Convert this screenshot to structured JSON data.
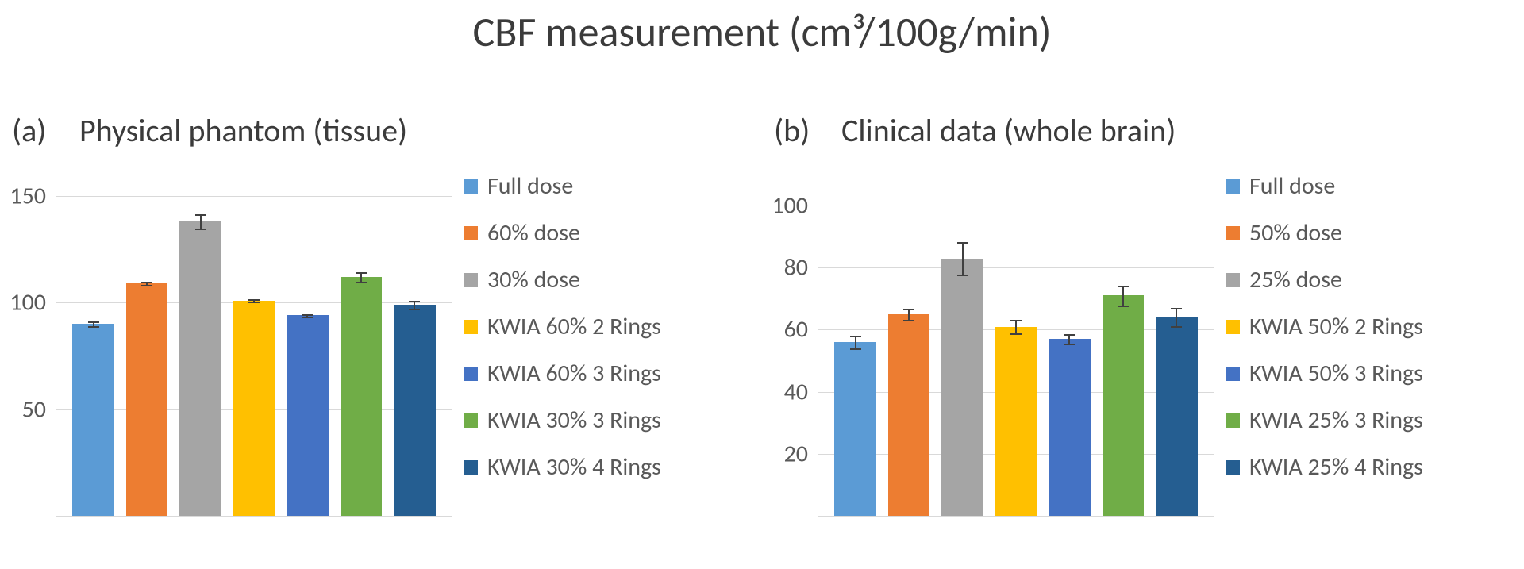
{
  "title": "CBF measurement (cm³/100g/min)",
  "panels": [
    {
      "tag": "(a)",
      "title": "Physical phantom (tissue)",
      "chart": {
        "type": "bar",
        "ylim": [
          0,
          160
        ],
        "yticks": [
          50,
          100,
          150
        ],
        "grid_color": "#d9d9d9",
        "tick_fontsize": 30,
        "tick_color": "#595959",
        "background_color": "#ffffff",
        "bar_width": 0.78,
        "error_color": "#404040",
        "series": [
          {
            "label": "Full dose",
            "value": 90,
            "error": 2,
            "color": "#5b9bd5"
          },
          {
            "label": "60% dose",
            "value": 109,
            "error": 1,
            "color": "#ed7d31"
          },
          {
            "label": "30% dose",
            "value": 138,
            "error": 4,
            "color": "#a5a5a5"
          },
          {
            "label": "KWIA 60% 2 Rings",
            "value": 101,
            "error": 1,
            "color": "#ffc000"
          },
          {
            "label": "KWIA 60% 3 Rings",
            "value": 94,
            "error": 1,
            "color": "#4472c4"
          },
          {
            "label": "KWIA 30% 3 Rings",
            "value": 112,
            "error": 3,
            "color": "#70ad47"
          },
          {
            "label": "KWIA 30% 4 Rings",
            "value": 99,
            "error": 3,
            "color": "#255e91"
          }
        ]
      }
    },
    {
      "tag": "(b)",
      "title": "Clinical data (whole brain)",
      "chart": {
        "type": "bar",
        "ylim": [
          0,
          110
        ],
        "yticks": [
          20,
          40,
          60,
          80,
          100
        ],
        "grid_color": "#d9d9d9",
        "tick_fontsize": 30,
        "tick_color": "#595959",
        "background_color": "#ffffff",
        "bar_width": 0.78,
        "error_color": "#404040",
        "series": [
          {
            "label": "Full dose",
            "value": 56,
            "error": 4,
            "color": "#5b9bd5"
          },
          {
            "label": "50% dose",
            "value": 65,
            "error": 3,
            "color": "#ed7d31"
          },
          {
            "label": "25% dose",
            "value": 83,
            "error": 7,
            "color": "#a5a5a5"
          },
          {
            "label": "KWIA 50% 2 Rings",
            "value": 61,
            "error": 4,
            "color": "#ffc000"
          },
          {
            "label": "KWIA 50% 3 Rings",
            "value": 57,
            "error": 3,
            "color": "#4472c4"
          },
          {
            "label": "KWIA 25% 3 Rings",
            "value": 71,
            "error": 5,
            "color": "#70ad47"
          },
          {
            "label": "KWIA 25% 4 Rings",
            "value": 64,
            "error": 5,
            "color": "#255e91"
          }
        ]
      }
    }
  ]
}
